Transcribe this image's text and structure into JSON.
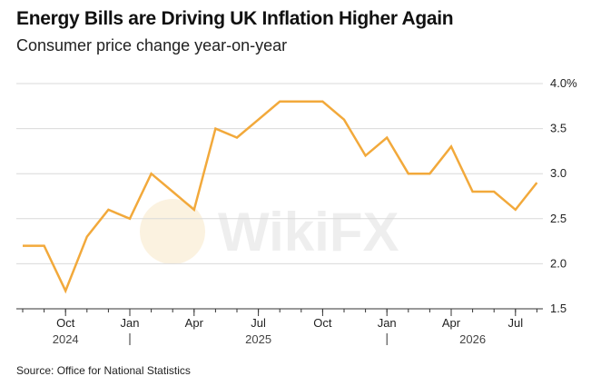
{
  "header": {
    "title": "Energy Bills are Driving UK Inflation Higher Again",
    "subtitle": "Consumer price change year-on-year"
  },
  "footer": {
    "source": "Source: Office for National Statistics"
  },
  "watermark": {
    "text": "WikiFX"
  },
  "colors": {
    "line": "#F2A93B",
    "grid": "#d9d9d9",
    "axis": "#333333"
  },
  "chart_data": {
    "type": "line",
    "title": "Energy Bills are Driving UK Inflation Higher Again",
    "subtitle": "Consumer price change year-on-year",
    "xlabel": "",
    "ylabel": "",
    "x": [
      "2024-08",
      "2024-09",
      "2024-10",
      "2024-11",
      "2024-12",
      "2025-01",
      "2025-02",
      "2025-03",
      "2025-04",
      "2025-05",
      "2025-06",
      "2025-07",
      "2025-08",
      "2025-09",
      "2025-10",
      "2025-11",
      "2025-12",
      "2026-01",
      "2026-02",
      "2026-03",
      "2026-04",
      "2026-05",
      "2026-06",
      "2026-07",
      "2026-08"
    ],
    "series": [
      {
        "values": [
          2.2,
          2.2,
          1.7,
          2.3,
          2.6,
          2.5,
          3.0,
          2.8,
          2.6,
          3.5,
          3.4,
          3.6,
          3.8,
          3.8,
          3.8,
          3.6,
          3.2,
          3.4,
          3.0,
          3.0,
          3.3,
          2.8,
          2.8,
          2.6,
          2.9
        ]
      }
    ],
    "ylim": [
      1.5,
      4.0
    ],
    "yticks": [
      1.5,
      2.0,
      2.5,
      3.0,
      3.5,
      4.0
    ],
    "ytick_labels": [
      "1.5",
      "2.0",
      "2.5",
      "3.0",
      "3.5",
      "4.0%"
    ],
    "xticks": [
      {
        "label": "Oct",
        "x": "2024-10"
      },
      {
        "label": "Jan",
        "x": "2025-01"
      },
      {
        "label": "Apr",
        "x": "2025-04"
      },
      {
        "label": "Jul",
        "x": "2025-07"
      },
      {
        "label": "Oct",
        "x": "2025-10"
      },
      {
        "label": "Jan",
        "x": "2026-01"
      },
      {
        "label": "Apr",
        "x": "2026-04"
      },
      {
        "label": "Jul",
        "x": "2026-07"
      }
    ],
    "year_labels": [
      {
        "label": "2024",
        "x": "2024-10"
      },
      {
        "label": "2025",
        "x": "2025-07"
      },
      {
        "label": "2026",
        "x": "2026-05"
      }
    ],
    "year_dividers": [
      "2025-01",
      "2026-01"
    ],
    "grid": true,
    "y_axis_position": "right"
  }
}
